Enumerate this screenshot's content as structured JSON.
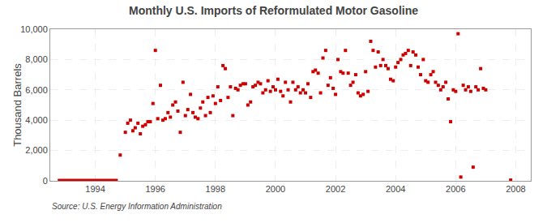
{
  "chart_data": {
    "type": "scatter",
    "title": "Monthly U.S. Imports of Reformulated Motor Gasoline",
    "ylabel": "Thousand Barrels",
    "annotations": [
      "Source: U.S. Energy Information Administration"
    ],
    "xlim": [
      1992.5,
      2008.5
    ],
    "ylim": [
      0,
      10000
    ],
    "xticks": [
      1994,
      1996,
      1998,
      2000,
      2002,
      2004,
      2006,
      2008
    ],
    "yticks": [
      0,
      {
        "value": 2000,
        "label": "2,000"
      },
      {
        "value": 4000,
        "label": "4,000"
      },
      {
        "value": 6000,
        "label": "6,000"
      },
      {
        "value": 8000,
        "label": "8,000"
      },
      {
        "value": 10000,
        "label": "10,000"
      }
    ],
    "grid": true,
    "series": [
      {
        "type": "line",
        "line_style": "solid",
        "color": "#CC0000",
        "x": [
          1992.75,
          1994.75
        ],
        "values": [
          0,
          0
        ]
      },
      {
        "type": "scatter",
        "marker": "square",
        "color": "#CC0000",
        "x": [
          1994.83,
          1995.0,
          1995.08,
          1995.17,
          1995.25,
          1995.33,
          1995.42,
          1995.5,
          1995.58,
          1995.67,
          1995.75,
          1995.83,
          1995.92,
          1996.0,
          1996.08,
          1996.17,
          1996.25,
          1996.33,
          1996.42,
          1996.5,
          1996.58,
          1996.67,
          1996.75,
          1996.83,
          1996.92,
          1997.0,
          1997.08,
          1997.17,
          1997.25,
          1997.33,
          1997.42,
          1997.5,
          1997.58,
          1997.67,
          1997.75,
          1997.83,
          1997.92,
          1998.0,
          1998.08,
          1998.17,
          1998.25,
          1998.33,
          1998.42,
          1998.5,
          1998.58,
          1998.67,
          1998.75,
          1998.83,
          1998.92,
          1999.0,
          1999.08,
          1999.17,
          1999.25,
          1999.33,
          1999.42,
          1999.5,
          1999.58,
          1999.67,
          1999.75,
          1999.83,
          1999.92,
          2000.0,
          2000.08,
          2000.17,
          2000.25,
          2000.33,
          2000.42,
          2000.5,
          2000.58,
          2000.67,
          2000.75,
          2000.83,
          2000.92,
          2001.0,
          2001.08,
          2001.17,
          2001.25,
          2001.33,
          2001.42,
          2001.5,
          2001.58,
          2001.67,
          2001.75,
          2001.83,
          2001.92,
          2002.0,
          2002.08,
          2002.17,
          2002.25,
          2002.33,
          2002.42,
          2002.5,
          2002.58,
          2002.67,
          2002.75,
          2002.83,
          2002.92,
          2003.0,
          2003.08,
          2003.17,
          2003.25,
          2003.33,
          2003.42,
          2003.5,
          2003.58,
          2003.67,
          2003.75,
          2003.83,
          2003.92,
          2004.0,
          2004.08,
          2004.17,
          2004.25,
          2004.33,
          2004.42,
          2004.5,
          2004.58,
          2004.67,
          2004.75,
          2004.83,
          2004.92,
          2005.0,
          2005.08,
          2005.17,
          2005.25,
          2005.33,
          2005.42,
          2005.5,
          2005.58,
          2005.67,
          2005.75,
          2005.83,
          2005.92,
          2006.0,
          2006.08,
          2006.17,
          2006.25,
          2006.33,
          2006.42,
          2006.5,
          2006.58,
          2006.67,
          2006.75,
          2006.83,
          2006.92,
          2007.0,
          2007.83
        ],
        "values": [
          1700,
          3200,
          3800,
          4000,
          3300,
          3500,
          3800,
          3100,
          3600,
          3700,
          3900,
          3900,
          5100,
          8600,
          4100,
          6300,
          4000,
          4100,
          4500,
          4200,
          5000,
          5200,
          4600,
          3200,
          6500,
          4300,
          4700,
          5700,
          4500,
          4200,
          4100,
          4800,
          5200,
          4300,
          5500,
          4500,
          5600,
          5100,
          6200,
          5300,
          7600,
          7400,
          5500,
          6200,
          4300,
          6100,
          6000,
          6300,
          6400,
          6400,
          5000,
          5200,
          6200,
          6300,
          6500,
          6400,
          5800,
          6000,
          6600,
          5900,
          6200,
          6000,
          6700,
          5900,
          5600,
          6500,
          6000,
          5200,
          6500,
          6000,
          6200,
          5800,
          6000,
          5800,
          6400,
          5500,
          7200,
          7300,
          7100,
          5800,
          8100,
          8600,
          6300,
          6800,
          6100,
          5700,
          8000,
          7200,
          7100,
          8600,
          7100,
          6300,
          6500,
          7000,
          5800,
          5600,
          5700,
          7200,
          5900,
          9200,
          8600,
          7500,
          8500,
          7600,
          8000,
          7600,
          7400,
          6700,
          6600,
          7500,
          7800,
          8000,
          8300,
          8400,
          8600,
          7600,
          8500,
          8300,
          7500,
          7000,
          8000,
          6600,
          6500,
          7000,
          7200,
          6500,
          6300,
          6000,
          6200,
          6500,
          5400,
          3900,
          6000,
          5900,
          9700,
          250,
          6300,
          6000,
          6200,
          5900,
          900,
          6200,
          6000,
          7400,
          6100,
          6000,
          50
        ]
      }
    ]
  }
}
